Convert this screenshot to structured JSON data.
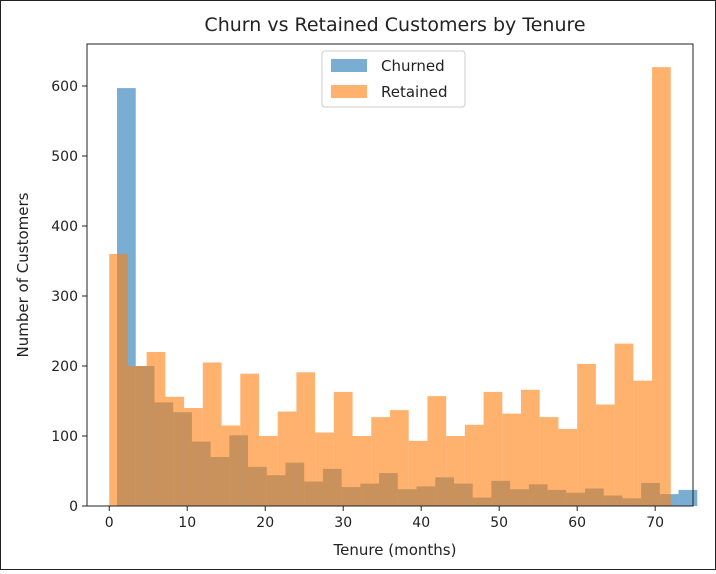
{
  "chart_data": {
    "type": "bar",
    "title": "Churn vs Retained Customers by Tenure",
    "xlabel": "Tenure (months)",
    "ylabel": "Number of Customers",
    "xlim": [
      -2.85,
      74.85
    ],
    "ylim": [
      0,
      660
    ],
    "x_ticks": [
      0,
      10,
      20,
      30,
      40,
      50,
      60,
      70
    ],
    "y_ticks": [
      0,
      100,
      200,
      300,
      400,
      500,
      600
    ],
    "legend_position": "upper center",
    "bin_width": 2.4,
    "series": [
      {
        "name": "Churned",
        "color": "#1f77b4",
        "alpha": 0.6,
        "bin_start": 1,
        "values": [
          597,
          200,
          148,
          134,
          92,
          70,
          101,
          56,
          44,
          62,
          35,
          53,
          27,
          32,
          47,
          24,
          28,
          41,
          32,
          12,
          36,
          24,
          31,
          23,
          19,
          25,
          15,
          11,
          33,
          17,
          23
        ]
      },
      {
        "name": "Retained",
        "color": "#ff7f0e",
        "alpha": 0.6,
        "bin_start": 0,
        "values": [
          360,
          200,
          220,
          156,
          140,
          205,
          115,
          189,
          100,
          135,
          191,
          105,
          163,
          100,
          127,
          137,
          93,
          157,
          100,
          116,
          163,
          132,
          166,
          127,
          110,
          203,
          145,
          232,
          179,
          627
        ]
      }
    ]
  }
}
